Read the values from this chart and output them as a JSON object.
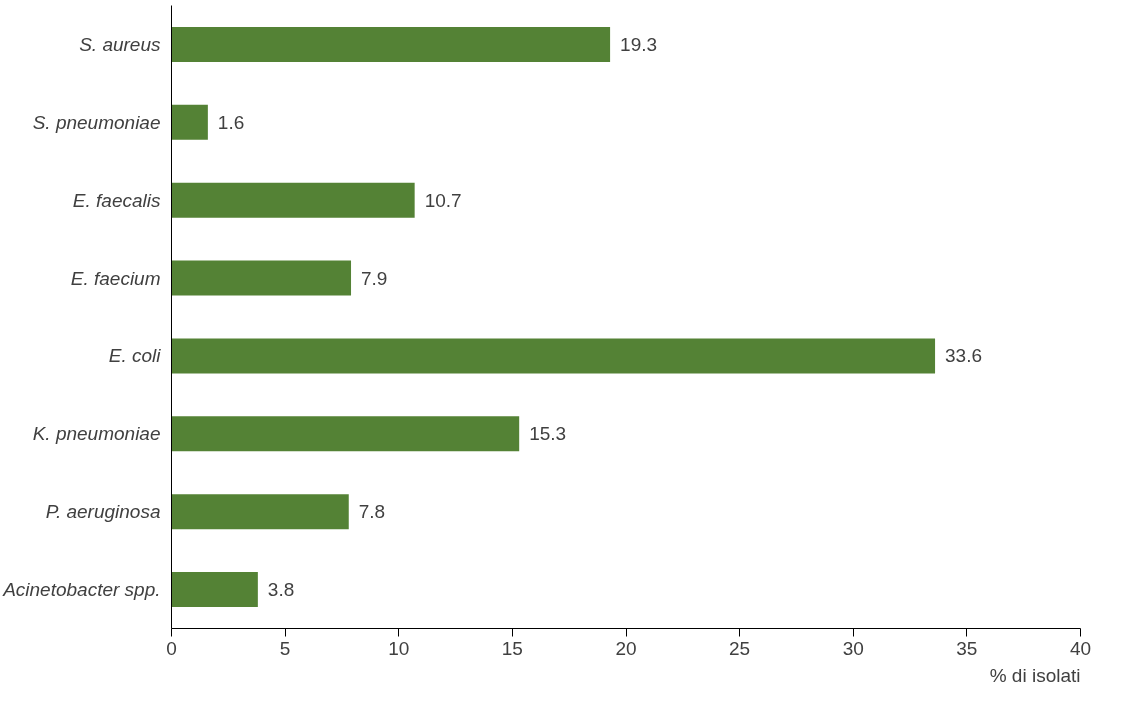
{
  "chart_data": {
    "type": "bar",
    "orientation": "horizontal",
    "categories": [
      "S. aureus",
      "S. pneumoniae",
      "E. faecalis",
      "E. faecium",
      "E. coli",
      "K. pneumoniae",
      "P. aeruginosa",
      "Acinetobacter spp."
    ],
    "values": [
      19.3,
      1.6,
      10.7,
      7.9,
      33.6,
      15.3,
      7.8,
      3.8
    ],
    "color": "#548235",
    "xlim": [
      0,
      40
    ],
    "xticks": [
      0,
      5,
      10,
      15,
      20,
      25,
      30,
      35,
      40
    ],
    "xlabel": "% di isolati",
    "data_labels": true,
    "grid": false
  }
}
